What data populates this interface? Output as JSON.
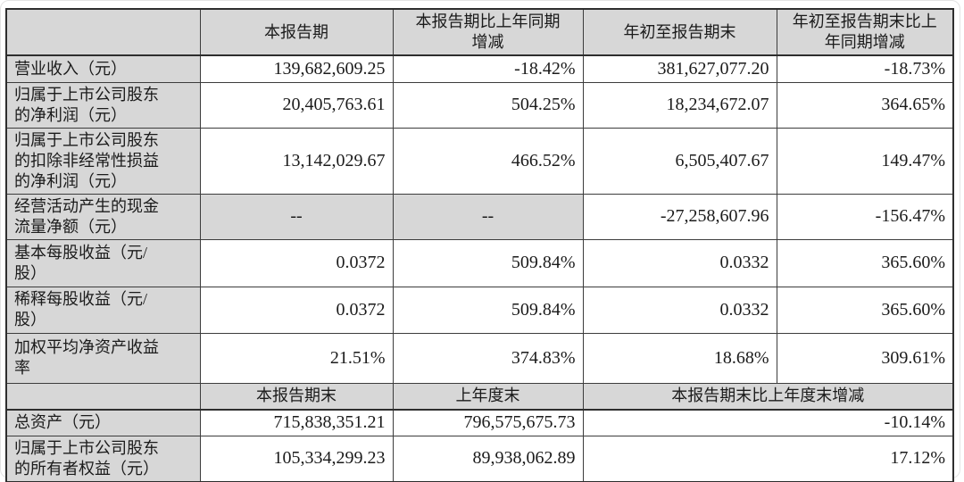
{
  "table": {
    "period_headers": {
      "current": "本报告期",
      "current_vs_prior": "本报告期比上年同期\n增减",
      "ytd": "年初至报告期末",
      "ytd_vs_prior": "年初至报告期末比上\n年同期增减"
    },
    "period_rows": [
      {
        "label": "营业收入（元）",
        "v": [
          "139,682,609.25",
          "-18.42%",
          "381,627,077.20",
          "-18.73%"
        ]
      },
      {
        "label": "归属于上市公司股东\n的净利润（元）",
        "v": [
          "20,405,763.61",
          "504.25%",
          "18,234,672.07",
          "364.65%"
        ]
      },
      {
        "label": "归属于上市公司股东\n的扣除非经常性损益\n的净利润（元）",
        "v": [
          "13,142,029.67",
          "466.52%",
          "6,505,407.67",
          "149.47%"
        ]
      },
      {
        "label": "经营活动产生的现金\n流量净额（元）",
        "v": [
          "--",
          "--",
          "-27,258,607.96",
          "-156.47%"
        ]
      },
      {
        "label": "基本每股收益（元/\n股）",
        "v": [
          "0.0372",
          "509.84%",
          "0.0332",
          "365.60%"
        ]
      },
      {
        "label": "稀释每股收益（元/\n股）",
        "v": [
          "0.0372",
          "509.84%",
          "0.0332",
          "365.60%"
        ]
      },
      {
        "label": "加权平均净资产收益\n率",
        "v": [
          "21.51%",
          "374.83%",
          "18.68%",
          "309.61%"
        ]
      }
    ],
    "eop_headers": {
      "end_of_period": "本报告期末",
      "end_of_prior_year": "上年度末",
      "eop_vs_prior_year": "本报告期末比上年度末增减"
    },
    "eop_rows": [
      {
        "label": "总资产（元）",
        "v": [
          "715,838,351.21",
          "796,575,675.73",
          "-10.14%"
        ]
      },
      {
        "label": "归属于上市公司股东\n的所有者权益（元）",
        "v": [
          "105,334,299.23",
          "89,938,062.89",
          "17.12%"
        ]
      }
    ],
    "colors": {
      "cell_gray": "#d7d7d7",
      "grid_line": "#3c3c3c",
      "text": "#1b1b1b"
    }
  }
}
